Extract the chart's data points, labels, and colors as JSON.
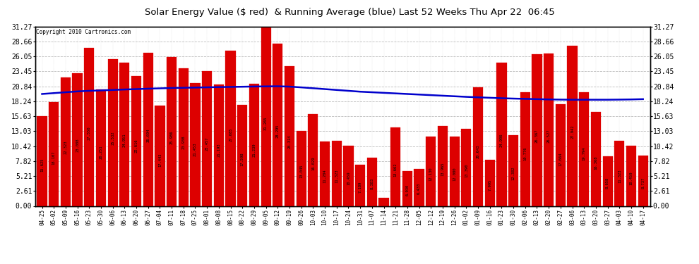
{
  "title": "Solar Energy Value ($ red)  & Running Average (blue) Last 52 Weeks Thu Apr 22  06:45",
  "copyright": "Copyright 2010 Cartronics.com",
  "bar_color": "#dd0000",
  "avg_line_color": "#0000cc",
  "yticks": [
    0.0,
    2.61,
    5.21,
    7.82,
    10.42,
    13.03,
    15.63,
    18.24,
    20.84,
    23.45,
    26.05,
    28.66,
    31.27
  ],
  "categories": [
    "04-25",
    "05-02",
    "05-09",
    "05-16",
    "05-23",
    "05-30",
    "06-06",
    "06-13",
    "06-20",
    "06-27",
    "07-04",
    "07-11",
    "07-18",
    "07-25",
    "08-01",
    "08-08",
    "08-15",
    "08-22",
    "08-29",
    "09-05",
    "09-12",
    "09-19",
    "09-26",
    "10-03",
    "10-10",
    "10-17",
    "10-24",
    "10-31",
    "11-07",
    "11-14",
    "11-21",
    "11-28",
    "12-05",
    "12-12",
    "12-19",
    "12-26",
    "01-02",
    "01-09",
    "01-16",
    "01-23",
    "01-30",
    "02-06",
    "02-13",
    "02-20",
    "02-27",
    "03-06",
    "03-13",
    "03-20",
    "03-27",
    "04-03",
    "04-10",
    "04-17"
  ],
  "bar_values": [
    15.625,
    18.107,
    22.323,
    23.088,
    27.55,
    20.251,
    25.532,
    24.951,
    22.616,
    26.694,
    17.443,
    25.986,
    23.938,
    21.453,
    23.457,
    21.193,
    27.085,
    17.598,
    21.239,
    31.265,
    28.295,
    24.314,
    13.045,
    16.029,
    11.204,
    11.323,
    10.459,
    7.189,
    8.383,
    1.364,
    13.662,
    6.03,
    6.433,
    12.13,
    13.965,
    12.08,
    13.39,
    20.643,
    7.995,
    24.906,
    12.382,
    19.776,
    26.367,
    26.527,
    17.664,
    27.942,
    19.794,
    16.368,
    8.658,
    11.323,
    10.459,
    8.737
  ],
  "running_avg": [
    19.5,
    19.65,
    19.8,
    19.95,
    20.05,
    20.12,
    20.2,
    20.28,
    20.35,
    20.42,
    20.48,
    20.54,
    20.58,
    20.62,
    20.66,
    20.7,
    20.73,
    20.76,
    20.8,
    20.82,
    20.84,
    20.78,
    20.65,
    20.5,
    20.35,
    20.2,
    20.05,
    19.9,
    19.8,
    19.7,
    19.6,
    19.5,
    19.4,
    19.3,
    19.2,
    19.1,
    19.0,
    18.92,
    18.84,
    18.76,
    18.7,
    18.65,
    18.6,
    18.55,
    18.52,
    18.5,
    18.5,
    18.5,
    18.5,
    18.52,
    18.55,
    18.6
  ]
}
